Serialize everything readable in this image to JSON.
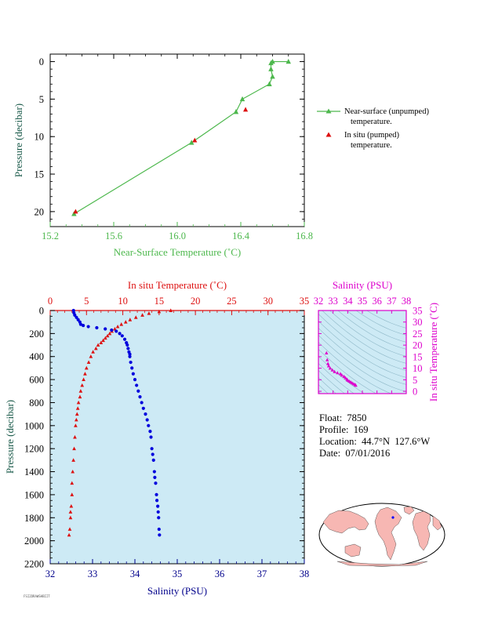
{
  "colors": {
    "green": "#4db84d",
    "red": "#dd1111",
    "blue": "#0000dd",
    "magenta": "#dd00cc",
    "axis_dark": "#000000",
    "plot_bg": "#cdeaf5",
    "teal_axis": "#1a5a4a",
    "blue_axis": "#00008b"
  },
  "legend": {
    "item1_line1": "Near-surface (unpumped)",
    "item1_line2": "temperature.",
    "item2_line1": "In situ (pumped)",
    "item2_line2": "temperature."
  },
  "float_info": {
    "float": "Float:  7850",
    "profile": "Profile:  169",
    "location": "Location:  44.7°N  127.6°W",
    "date": "Date:  07/01/2016"
  },
  "footer_tag": "FSI2DRAWSHBIIT",
  "chart_data": [
    {
      "id": "near_surface",
      "type": "line",
      "xlabel": "Near-Surface Temperature (˚C)",
      "ylabel": "Pressure (decibar)",
      "xlim": [
        15.2,
        16.8
      ],
      "ylim": [
        22,
        -1
      ],
      "xticks": [
        "15.2",
        "15.6",
        "16.0",
        "16.4",
        "16.8"
      ],
      "yticks": [
        "0",
        "5",
        "10",
        "15",
        "20"
      ],
      "series": [
        {
          "name": "Near-surface (unpumped) temperature.",
          "marker": "triangle",
          "x": [
            16.7,
            16.6,
            16.59,
            16.59,
            16.6,
            16.58,
            16.41,
            16.37,
            16.09,
            15.35
          ],
          "y": [
            0.0,
            0.0,
            0.2,
            1.0,
            2.0,
            3.0,
            5.0,
            6.7,
            10.8,
            20.3
          ]
        },
        {
          "name": "In situ (pumped) temperature.",
          "marker": "triangle",
          "x": [
            16.43,
            16.11,
            15.36
          ],
          "y": [
            6.4,
            10.5,
            20.0
          ]
        }
      ]
    },
    {
      "id": "profile",
      "type": "scatter",
      "xlabel": "Salinity (PSU)",
      "x2label": "In situ Temperature (˚C)",
      "ylabel": "Pressure (decibar)",
      "xlim": [
        32,
        38
      ],
      "x2lim": [
        0,
        35
      ],
      "ylim": [
        2200,
        0
      ],
      "xticks": [
        "32",
        "33",
        "34",
        "35",
        "36",
        "37",
        "38"
      ],
      "x2ticks": [
        "0",
        "5",
        "10",
        "15",
        "20",
        "25",
        "30",
        "35"
      ],
      "yticks": [
        "0",
        "200",
        "400",
        "600",
        "800",
        "1000",
        "1200",
        "1400",
        "1600",
        "1800",
        "2000",
        "2200"
      ],
      "series": [
        {
          "name": "temperature",
          "axis": "top",
          "marker": "triangle",
          "x": [
            16.6,
            15.0,
            13.6,
            12.7,
            11.8,
            11.0,
            10.4,
            9.8,
            9.3,
            8.9,
            8.5,
            8.2,
            7.9,
            7.6,
            7.3,
            7.0,
            6.6,
            6.3,
            5.9,
            5.6,
            5.3,
            5.0,
            4.8,
            4.6,
            4.4,
            4.2,
            4.1,
            3.9,
            3.8,
            3.7,
            3.6,
            3.5,
            3.4,
            3.3,
            3.2,
            3.1,
            3.0,
            3.0,
            2.9,
            2.8,
            2.8,
            2.7,
            2.6
          ],
          "y": [
            0,
            10,
            25,
            40,
            60,
            80,
            100,
            120,
            140,
            160,
            180,
            200,
            220,
            240,
            260,
            280,
            300,
            330,
            360,
            400,
            450,
            500,
            550,
            600,
            650,
            700,
            750,
            800,
            850,
            900,
            950,
            1000,
            1100,
            1200,
            1300,
            1400,
            1500,
            1600,
            1700,
            1750,
            1800,
            1900,
            1950
          ]
        },
        {
          "name": "salinity",
          "axis": "bottom",
          "marker": "dot",
          "x": [
            32.55,
            32.56,
            32.58,
            32.62,
            32.66,
            32.7,
            32.72,
            32.78,
            32.9,
            33.1,
            33.3,
            33.45,
            33.56,
            33.64,
            33.7,
            33.76,
            33.8,
            33.82,
            33.84,
            33.86,
            33.88,
            33.88,
            33.9,
            33.93,
            33.96,
            34.0,
            34.04,
            34.08,
            34.12,
            34.16,
            34.2,
            34.25,
            34.29,
            34.32,
            34.36,
            34.38,
            34.4,
            34.42,
            34.44,
            34.46,
            34.47,
            34.49,
            34.51,
            34.52,
            34.54,
            34.55,
            34.56,
            34.57,
            34.58
          ],
          "y": [
            0,
            20,
            40,
            60,
            80,
            100,
            120,
            130,
            140,
            150,
            160,
            170,
            180,
            200,
            220,
            250,
            280,
            300,
            330,
            360,
            380,
            400,
            450,
            500,
            550,
            600,
            650,
            700,
            750,
            800,
            850,
            900,
            950,
            1000,
            1050,
            1100,
            1200,
            1250,
            1300,
            1400,
            1450,
            1500,
            1600,
            1650,
            1700,
            1750,
            1800,
            1900,
            1950
          ]
        }
      ]
    },
    {
      "id": "ts_diagram",
      "type": "scatter",
      "xlabel": "Salinity (PSU)",
      "ylabel": "In situ Temperature (˚C)",
      "xlim": [
        32,
        38
      ],
      "ylim": [
        -1,
        35
      ],
      "xticks": [
        "32",
        "33",
        "34",
        "35",
        "36",
        "37",
        "38"
      ],
      "yticks": [
        "0",
        "5",
        "10",
        "15",
        "20",
        "25",
        "30",
        "35"
      ],
      "series": [
        {
          "name": "T-S",
          "marker": "triangle",
          "x": [
            32.55,
            32.6,
            32.65,
            32.7,
            32.8,
            32.95,
            33.1,
            33.3,
            33.5,
            33.6,
            33.75,
            33.85,
            33.95,
            34.0,
            34.1,
            34.2,
            34.3,
            34.4,
            34.5,
            34.55
          ],
          "y": [
            16.6,
            13.6,
            12.0,
            11.0,
            10.0,
            9.2,
            8.5,
            8.0,
            7.6,
            7.0,
            6.4,
            5.8,
            5.2,
            4.8,
            4.4,
            4.0,
            3.6,
            3.2,
            2.9,
            2.6
          ]
        }
      ]
    }
  ]
}
